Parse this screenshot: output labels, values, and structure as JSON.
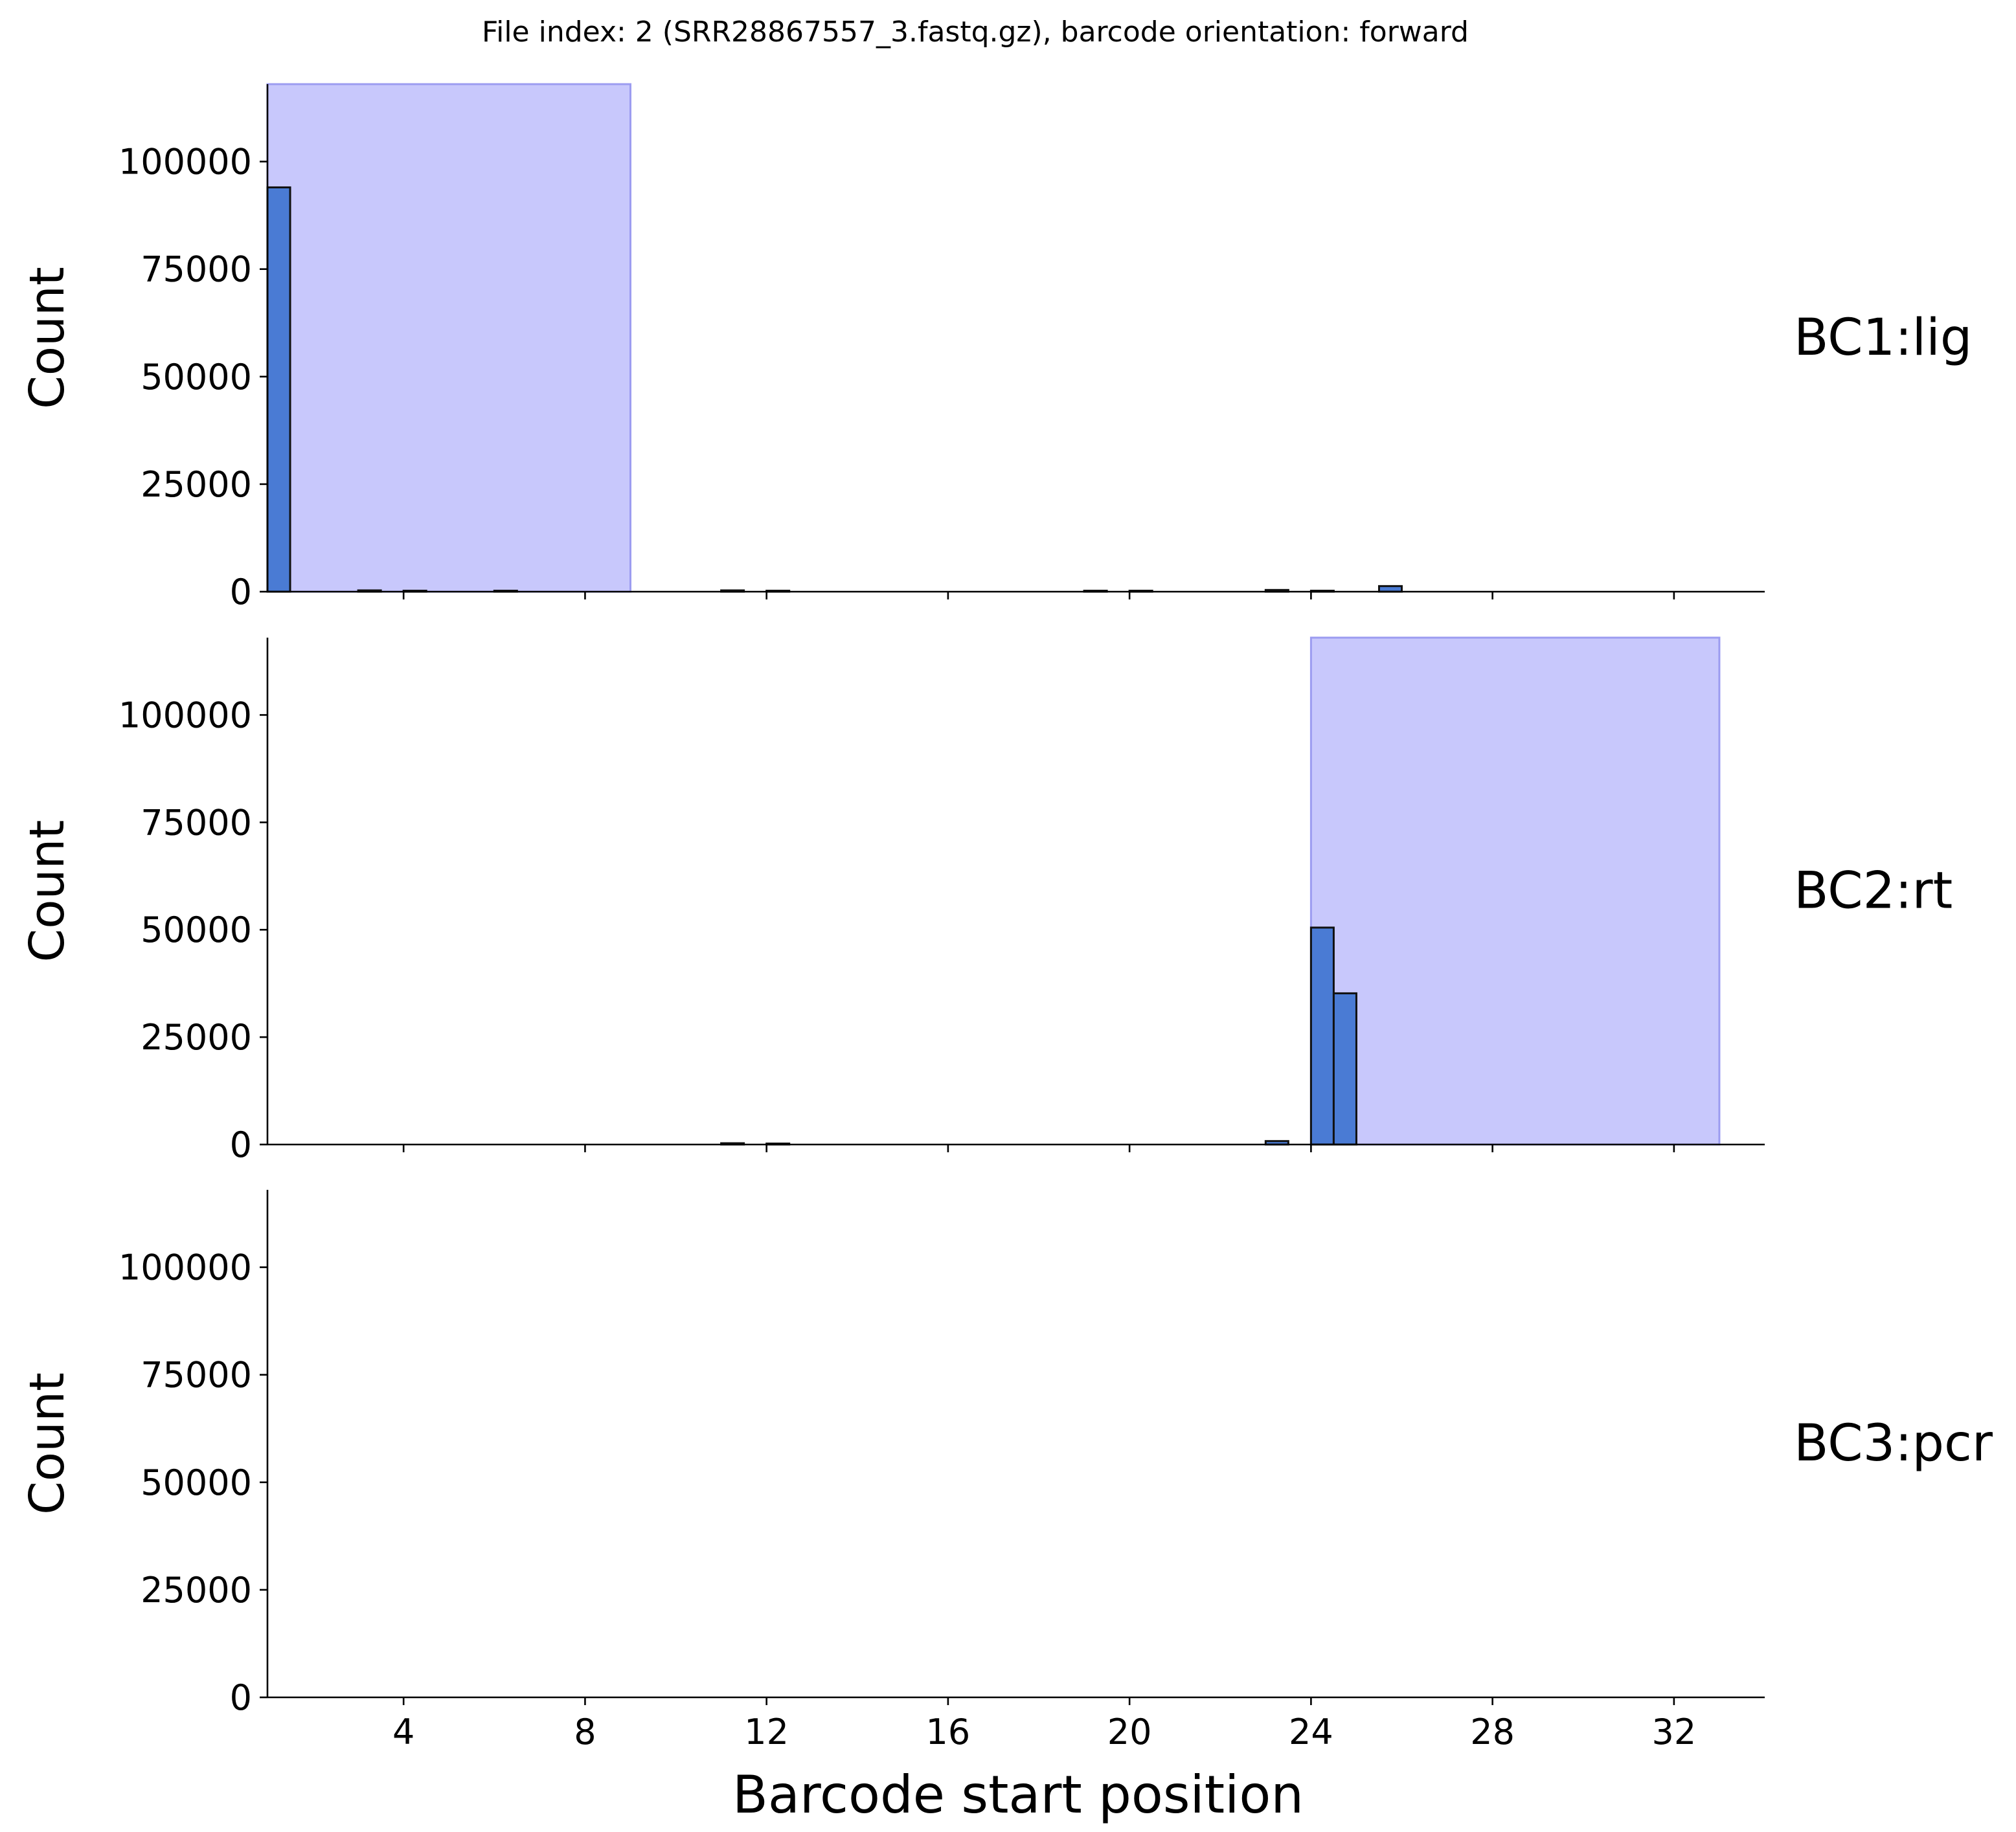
{
  "figure": {
    "title": "File index: 2 (SRR28867557_3.fastq.gz), barcode orientation: forward",
    "xlabel": "Barcode start position"
  },
  "chart_data": {
    "type": "bar",
    "title": "File index: 2 (SRR28867557_3.fastq.gz), barcode orientation: forward",
    "xlabel": "Barcode start position",
    "ylabel": "Count",
    "xlim": [
      1,
      34
    ],
    "ylim": [
      0,
      118000
    ],
    "xticks": [
      4,
      8,
      12,
      16,
      20,
      24,
      28,
      32
    ],
    "yticks": [
      0,
      25000,
      50000,
      75000,
      100000
    ],
    "grid": false,
    "bar_color": "#4a7bd4",
    "region_color": "#c8c8fc",
    "panels": [
      {
        "label": "BC1:lig",
        "ylabel": "Count",
        "region": [
          1,
          9
        ],
        "bars": [
          {
            "x": 1,
            "value": 94000
          },
          {
            "x": 3,
            "value": 300
          },
          {
            "x": 4,
            "value": 200
          },
          {
            "x": 6,
            "value": 150
          },
          {
            "x": 11,
            "value": 300
          },
          {
            "x": 12,
            "value": 200
          },
          {
            "x": 19,
            "value": 200
          },
          {
            "x": 20,
            "value": 150
          },
          {
            "x": 23,
            "value": 400
          },
          {
            "x": 24,
            "value": 150
          },
          {
            "x": 25.5,
            "value": 1300
          }
        ]
      },
      {
        "label": "BC2:rt",
        "ylabel": "Count",
        "region": [
          24,
          33
        ],
        "bars": [
          {
            "x": 11,
            "value": 300
          },
          {
            "x": 12,
            "value": 150
          },
          {
            "x": 23,
            "value": 800
          },
          {
            "x": 24,
            "value": 50500
          },
          {
            "x": 24.5,
            "value": 35200
          }
        ]
      },
      {
        "label": "BC3:pcr",
        "ylabel": "Count",
        "region": null,
        "bars": []
      }
    ]
  }
}
